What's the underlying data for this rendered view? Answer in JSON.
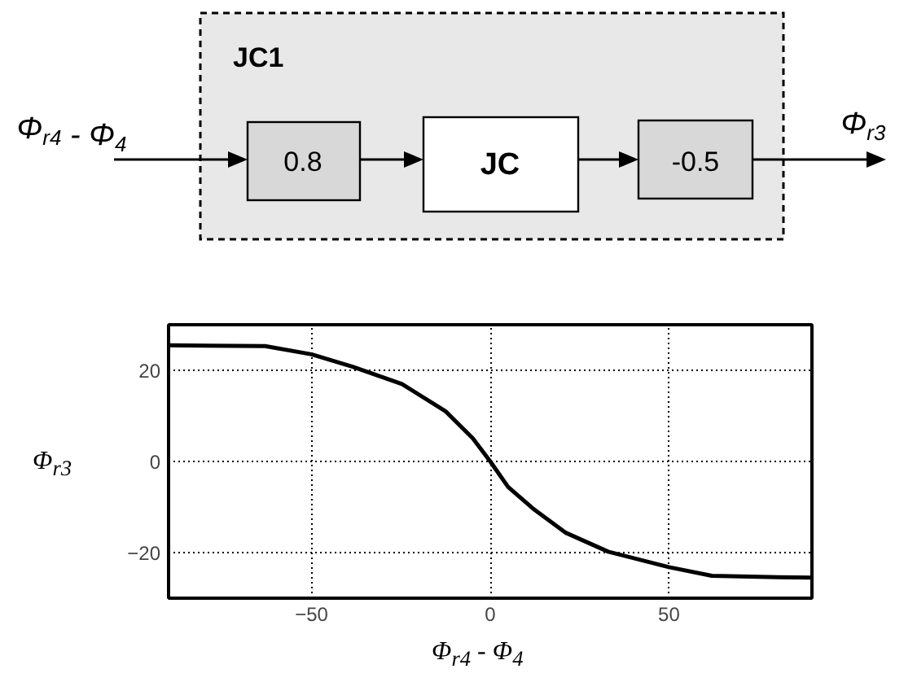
{
  "chart_data": [
    {
      "type": "other",
      "title": "JC1",
      "annotations": [
        "Φ$_{r4}$ - Φ$_{4}$",
        "0.8",
        "JC",
        "-0.5",
        "Φ$_{r3}$"
      ]
    },
    {
      "type": "line",
      "xlabel": "Φ$_{r4}$ - Φ$_{4}$",
      "ylabel": "Φ$_{r3}$",
      "x": [
        -90,
        -63,
        -50,
        -38.5,
        -24.7,
        -12.5,
        -4.9,
        0,
        5,
        11.9,
        21,
        33,
        50,
        62,
        80.6,
        90
      ],
      "series": [
        {
          "color": "#000000",
          "values": [
            25.5,
            25.3,
            23.5,
            20.8,
            17,
            11,
            5.1,
            0,
            -5.6,
            -10.3,
            -15.6,
            -19.8,
            -23.2,
            -25.1,
            -25.4,
            -25.5
          ]
        }
      ],
      "xlim": [
        -90,
        90
      ],
      "ylim": [
        -30,
        30
      ],
      "xticks": [
        -50,
        0,
        50
      ],
      "yticks": [
        -20,
        0,
        20
      ],
      "grid": true,
      "marker": "none",
      "line_style": "solid"
    }
  ]
}
